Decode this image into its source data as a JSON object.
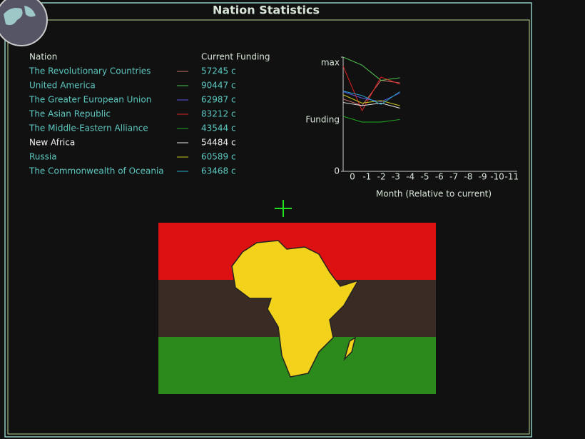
{
  "title": "Nation Statistics",
  "table": {
    "headers": [
      "Nation",
      "Current Funding"
    ],
    "rows": [
      [
        "The Revolutionary Countries",
        "57245 c"
      ],
      [
        "United America",
        "90447 c"
      ],
      [
        "The Greater European Union",
        "62987 c"
      ],
      [
        "The Asian Republic",
        "83212 c"
      ],
      [
        "The Middle-Eastern Alliance",
        "43544 c"
      ],
      [
        "New Africa",
        "54484 c"
      ],
      [
        "Russia",
        "60589 c"
      ],
      [
        "The Commonwealth of Oceania",
        "63468 c"
      ]
    ]
  },
  "chart_data": {
    "type": "line",
    "ylabel": "Funding",
    "xlabel": "Month (Relative to current)",
    "categories": [
      "0",
      "-1",
      "-2",
      "-3",
      "-4",
      "-5",
      "-6",
      "-7",
      "-8",
      "-9",
      "-10",
      "-11"
    ],
    "ylim": [
      0,
      90400
    ],
    "yticks": [
      {
        "value": 0,
        "label": "0"
      },
      {
        "value": 90400,
        "label": "max"
      }
    ],
    "series": [
      {
        "name": "The Revolutionary Countries",
        "color": "#d07070",
        "values": [
          57245,
          52000,
          72000,
          70000,
          null,
          null,
          null,
          null,
          null,
          null,
          null,
          null
        ]
      },
      {
        "name": "United America",
        "color": "#50c850",
        "values": [
          90447,
          84000,
          72000,
          74000,
          null,
          null,
          null,
          null,
          null,
          null,
          null,
          null
        ]
      },
      {
        "name": "The Greater European Union",
        "color": "#5858e0",
        "values": [
          62987,
          58000,
          55000,
          62000,
          null,
          null,
          null,
          null,
          null,
          null,
          null,
          null
        ]
      },
      {
        "name": "The Asian Republic",
        "color": "#e02020",
        "values": [
          83212,
          48000,
          74600,
          69000,
          null,
          null,
          null,
          null,
          null,
          null,
          null,
          null
        ]
      },
      {
        "name": "The Middle-Eastern Alliance",
        "color": "#20b020",
        "values": [
          43544,
          39000,
          39000,
          41000,
          null,
          null,
          null,
          null,
          null,
          null,
          null,
          null
        ]
      },
      {
        "name": "New Africa",
        "color": "#e8e8e8",
        "values": [
          54484,
          52000,
          54000,
          50000,
          null,
          null,
          null,
          null,
          null,
          null,
          null,
          null
        ]
      },
      {
        "name": "Russia",
        "color": "#c8c820",
        "values": [
          60589,
          54000,
          56000,
          52000,
          null,
          null,
          null,
          null,
          null,
          null,
          null,
          null
        ]
      },
      {
        "name": "The Commonwealth of Oceania",
        "color": "#28a8d0",
        "values": [
          63468,
          60000,
          53000,
          63000,
          null,
          null,
          null,
          null,
          null,
          null,
          null,
          null
        ]
      }
    ]
  }
}
